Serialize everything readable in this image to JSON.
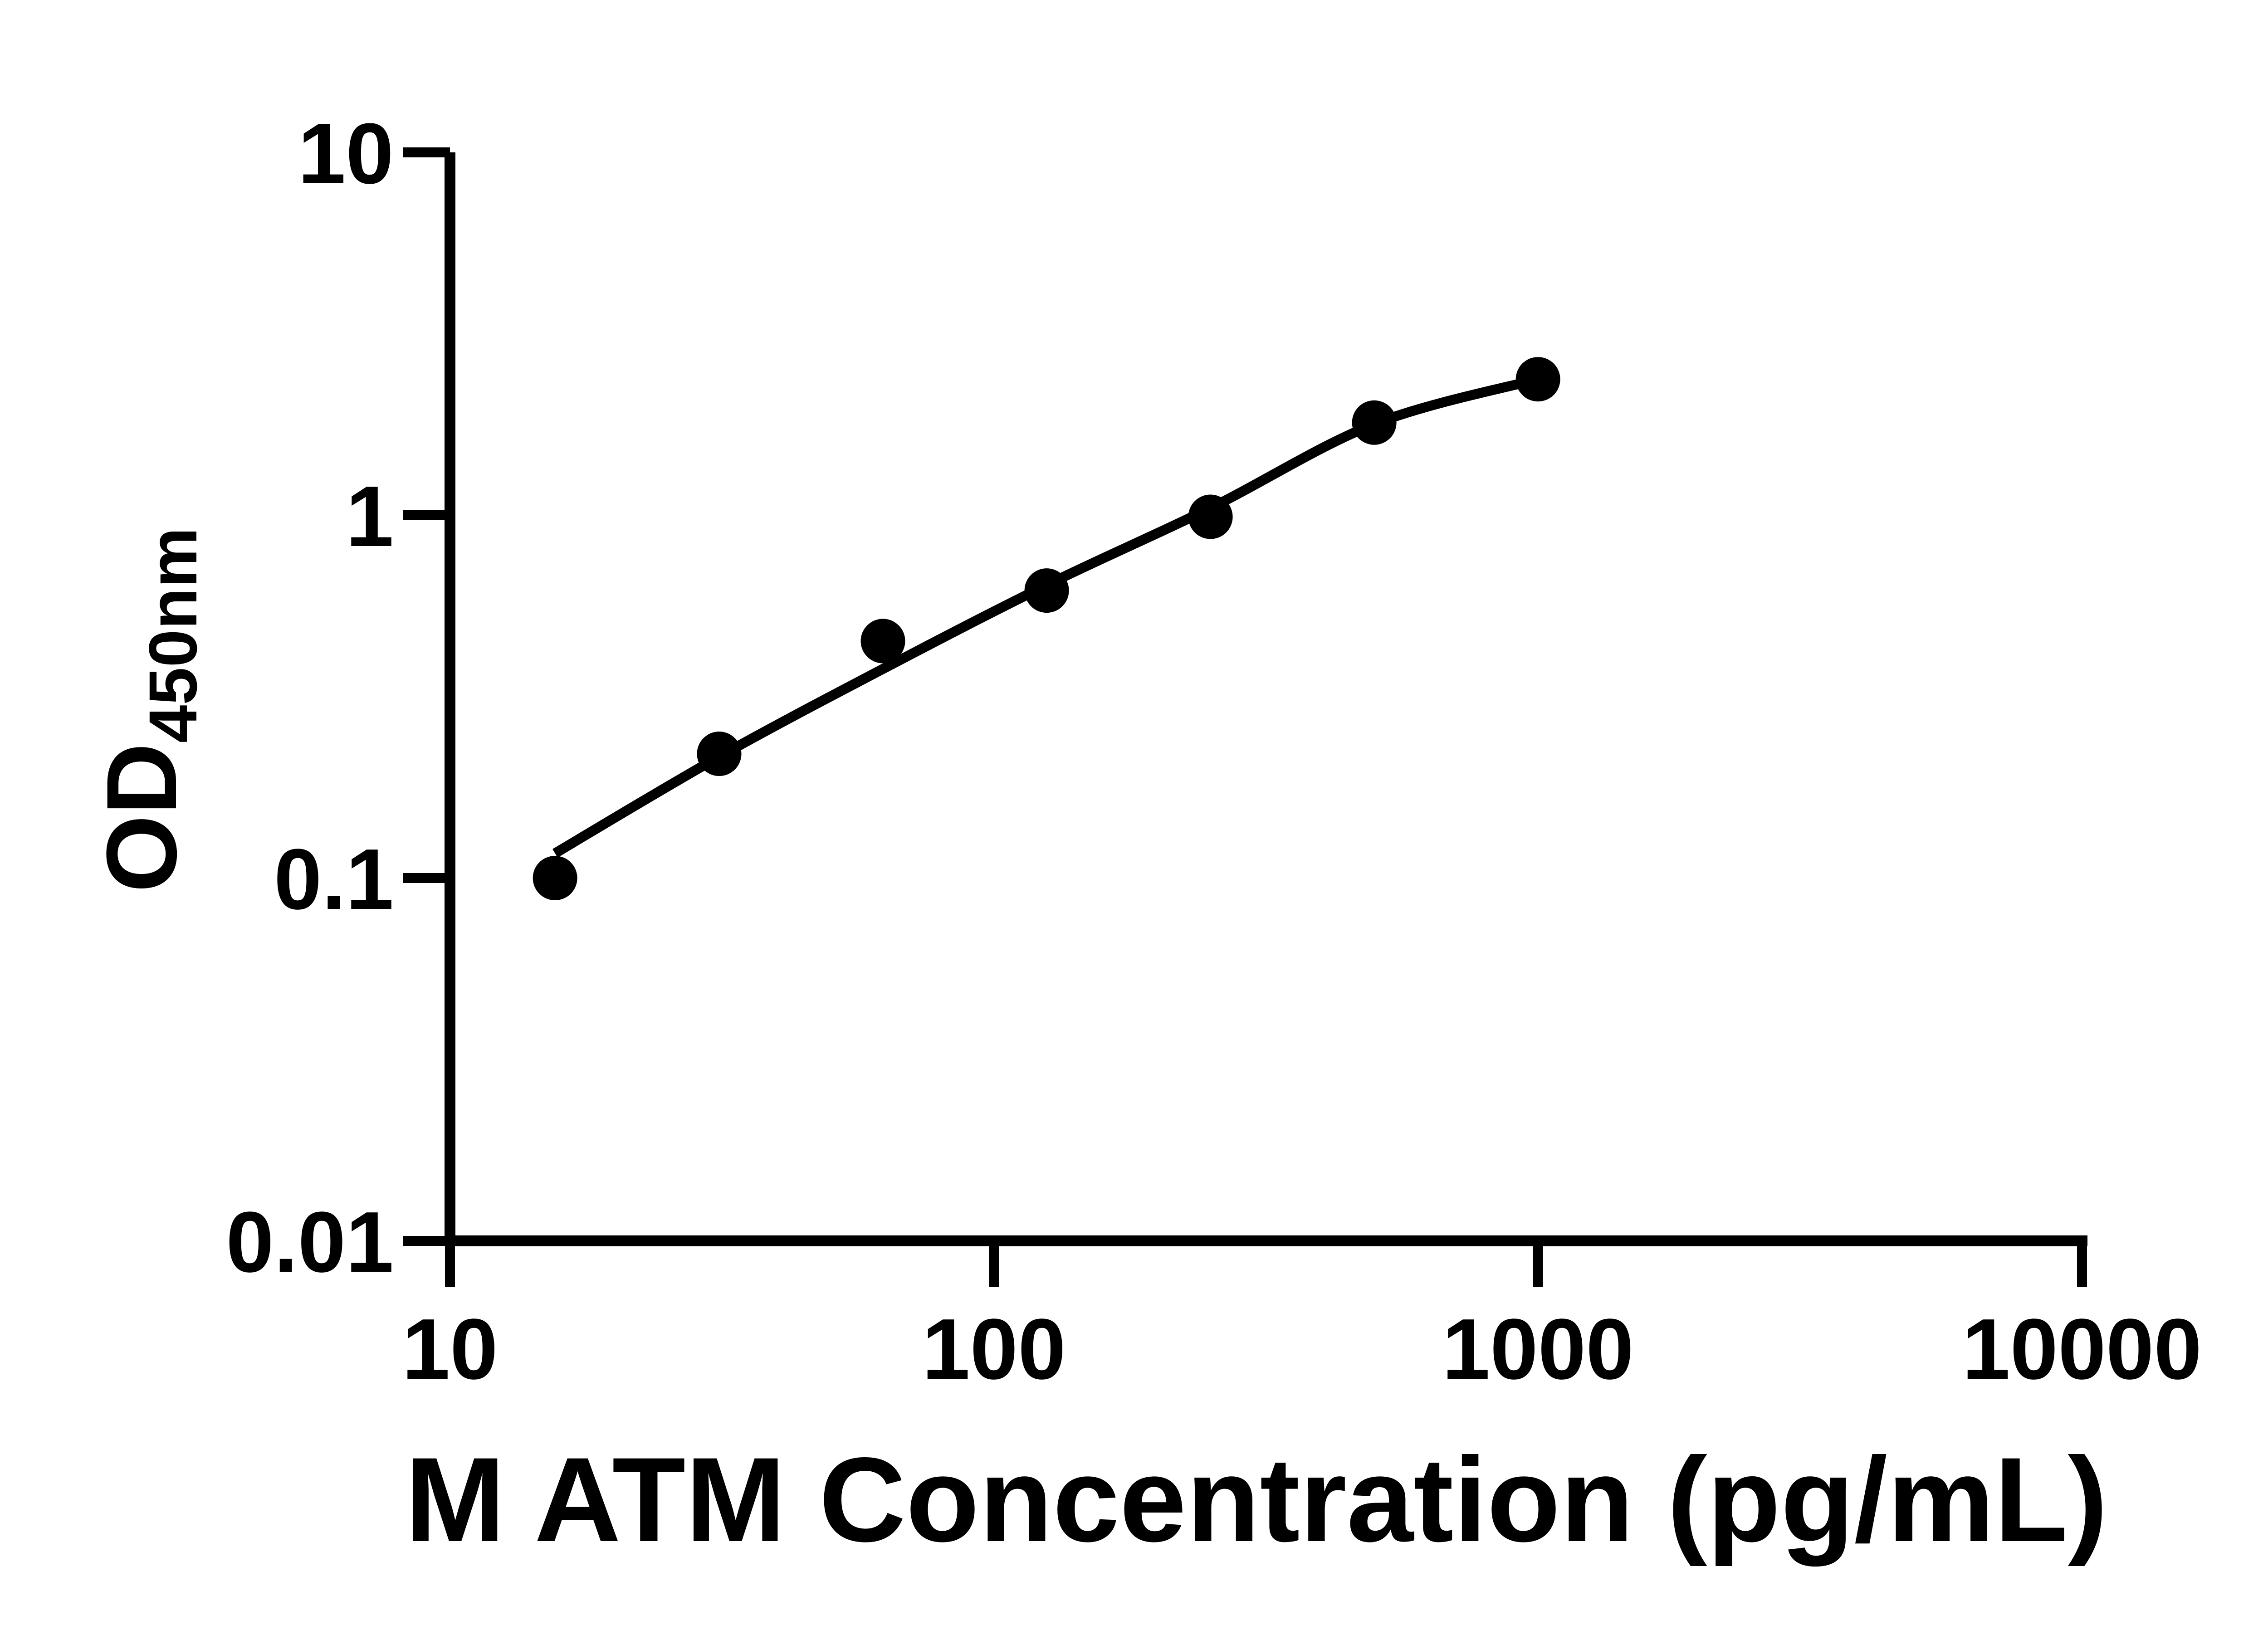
{
  "figure": {
    "background": "#ffffff",
    "ink_color": "#000000"
  },
  "chart_data": {
    "type": "scatter",
    "title": "",
    "xlabel": "M ATM Concentration (pg/mL)",
    "ylabel_main": "OD",
    "ylabel_subscript": "450nm",
    "x_scale": "log",
    "y_scale": "log",
    "xlim": [
      10,
      10000
    ],
    "ylim": [
      0.01,
      10
    ],
    "x_ticks": [
      10,
      100,
      1000,
      10000
    ],
    "x_tick_labels": [
      "10",
      "100",
      "1000",
      "10000"
    ],
    "y_ticks": [
      10,
      1,
      0.1,
      0.01
    ],
    "y_tick_labels": [
      "10",
      "1",
      "0.1",
      "0.01"
    ],
    "grid": false,
    "legend_position": "none",
    "marker_color": "#000000",
    "line_color": "#000000",
    "series": [
      {
        "name": "standard-points",
        "type": "scatter",
        "marker": "filled-circle",
        "x": [
          15.6,
          31.25,
          62.5,
          125,
          250,
          500,
          1000
        ],
        "y": [
          0.1,
          0.22,
          0.45,
          0.62,
          0.99,
          1.8,
          2.37
        ]
      },
      {
        "name": "fit-curve",
        "type": "line",
        "x": [
          15.6,
          31.25,
          62.5,
          125,
          250,
          500,
          1000
        ],
        "y": [
          0.117,
          0.216,
          0.377,
          0.642,
          1.047,
          1.783,
          2.371
        ]
      }
    ]
  }
}
